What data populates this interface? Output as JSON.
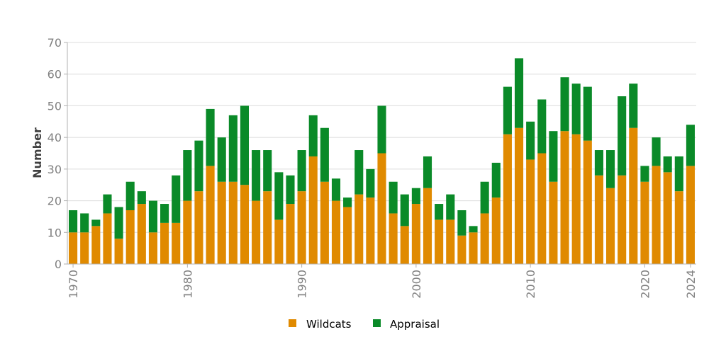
{
  "chart_data": {
    "type": "bar",
    "stacked": true,
    "ylabel": "Number",
    "xlabel": "",
    "ylim": [
      0,
      70
    ],
    "yticks": [
      0,
      10,
      20,
      30,
      40,
      50,
      60,
      70
    ],
    "xtick_labels": [
      "1970",
      "1980",
      "1990",
      "2000",
      "2010",
      "2020",
      "2024"
    ],
    "grid": "horizontal",
    "legend_position": "bottom-center",
    "categories": [
      1970,
      1971,
      1972,
      1973,
      1974,
      1975,
      1976,
      1977,
      1978,
      1979,
      1980,
      1981,
      1982,
      1983,
      1984,
      1985,
      1986,
      1987,
      1988,
      1989,
      1990,
      1991,
      1992,
      1993,
      1994,
      1995,
      1996,
      1997,
      1998,
      1999,
      2000,
      2001,
      2002,
      2003,
      2004,
      2005,
      2006,
      2007,
      2008,
      2009,
      2010,
      2011,
      2012,
      2013,
      2014,
      2015,
      2016,
      2017,
      2018,
      2019,
      2020,
      2021,
      2022,
      2023,
      2024
    ],
    "series": [
      {
        "name": "Wildcats",
        "color": "#e08a00",
        "values": [
          10,
          10,
          12,
          16,
          8,
          17,
          19,
          10,
          13,
          13,
          20,
          23,
          31,
          26,
          26,
          25,
          20,
          23,
          14,
          19,
          23,
          34,
          26,
          20,
          18,
          22,
          21,
          35,
          16,
          12,
          19,
          24,
          14,
          14,
          9,
          10,
          16,
          21,
          41,
          43,
          33,
          35,
          26,
          42,
          41,
          39,
          28,
          24,
          28,
          43,
          26,
          31,
          29,
          23,
          31
        ]
      },
      {
        "name": "Appraisal",
        "color": "#0a8a28",
        "values": [
          7,
          6,
          2,
          6,
          10,
          9,
          4,
          10,
          6,
          15,
          16,
          16,
          18,
          14,
          21,
          25,
          16,
          13,
          15,
          9,
          13,
          13,
          17,
          7,
          3,
          14,
          9,
          15,
          10,
          10,
          5,
          10,
          5,
          8,
          8,
          2,
          10,
          11,
          15,
          22,
          12,
          17,
          16,
          17,
          16,
          17,
          8,
          12,
          25,
          14,
          5,
          9,
          5,
          11,
          13
        ]
      }
    ]
  }
}
